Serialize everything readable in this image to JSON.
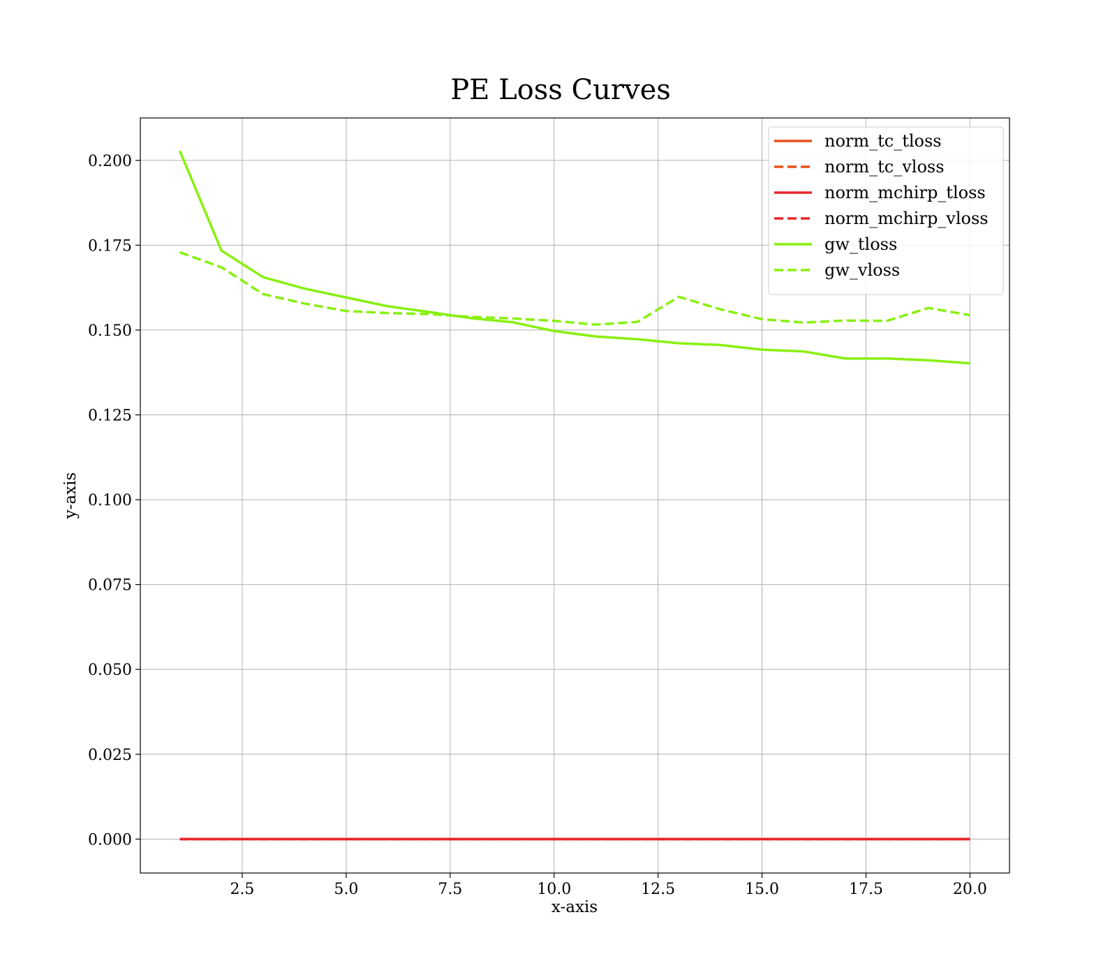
{
  "chart_data": {
    "type": "line",
    "title": "PE Loss Curves",
    "xlabel": "x-axis",
    "ylabel": "y-axis",
    "xlim": [
      0.05,
      20.95
    ],
    "ylim": [
      -0.01,
      0.2125
    ],
    "xticks": [
      2.5,
      5.0,
      7.5,
      10.0,
      12.5,
      15.0,
      17.5,
      20.0
    ],
    "xtick_labels": [
      "2.5",
      "5.0",
      "7.5",
      "10.0",
      "12.5",
      "15.0",
      "17.5",
      "20.0"
    ],
    "yticks": [
      0.0,
      0.025,
      0.05,
      0.075,
      0.1,
      0.125,
      0.15,
      0.175,
      0.2
    ],
    "ytick_labels": [
      "0.000",
      "0.025",
      "0.050",
      "0.075",
      "0.100",
      "0.125",
      "0.150",
      "0.175",
      "0.200"
    ],
    "grid": true,
    "legend_position": "top-right",
    "x": [
      1,
      2,
      3,
      4,
      5,
      6,
      7,
      8,
      9,
      10,
      11,
      12,
      13,
      14,
      15,
      16,
      17,
      18,
      19,
      20
    ],
    "series": [
      {
        "name": "norm_tc_tloss",
        "color": "#e8501c",
        "style": "solid",
        "values": [
          0.0,
          0.0,
          0.0,
          0.0,
          0.0,
          0.0,
          0.0,
          0.0,
          0.0,
          0.0,
          0.0,
          0.0,
          0.0,
          0.0,
          0.0,
          0.0,
          0.0,
          0.0,
          0.0,
          0.0
        ]
      },
      {
        "name": "norm_tc_vloss",
        "color": "#e8501c",
        "style": "dashed",
        "values": [
          0.0,
          0.0,
          0.0,
          0.0,
          0.0,
          0.0,
          0.0,
          0.0,
          0.0,
          0.0,
          0.0,
          0.0,
          0.0,
          0.0,
          0.0,
          0.0,
          0.0,
          0.0,
          0.0,
          0.0
        ]
      },
      {
        "name": "norm_mchirp_tloss",
        "color": "#e8262a",
        "style": "solid",
        "values": [
          0.0,
          0.0,
          0.0,
          0.0,
          0.0,
          0.0,
          0.0,
          0.0,
          0.0,
          0.0,
          0.0,
          0.0,
          0.0,
          0.0,
          0.0,
          0.0,
          0.0,
          0.0,
          0.0,
          0.0
        ]
      },
      {
        "name": "norm_mchirp_vloss",
        "color": "#e8262a",
        "style": "dashed",
        "values": [
          0.0,
          0.0,
          0.0,
          0.0,
          0.0,
          0.0,
          0.0,
          0.0,
          0.0,
          0.0,
          0.0,
          0.0,
          0.0,
          0.0,
          0.0,
          0.0,
          0.0,
          0.0,
          0.0,
          0.0
        ]
      },
      {
        "name": "gw_tloss",
        "color": "#88f00f",
        "style": "solid",
        "values": [
          0.2028,
          0.1734,
          0.1656,
          0.1622,
          0.1596,
          0.157,
          0.1553,
          0.1535,
          0.1523,
          0.1497,
          0.1481,
          0.1473,
          0.1461,
          0.1456,
          0.1442,
          0.1437,
          0.1416,
          0.1416,
          0.1411,
          0.1402
        ]
      },
      {
        "name": "gw_vloss",
        "color": "#88f00f",
        "style": "dashed",
        "values": [
          0.1729,
          0.1685,
          0.1606,
          0.1578,
          0.1556,
          0.155,
          0.1547,
          0.1539,
          0.1534,
          0.1527,
          0.1516,
          0.1524,
          0.1598,
          0.1561,
          0.1532,
          0.1522,
          0.1528,
          0.1527,
          0.1565,
          0.1544
        ]
      }
    ]
  }
}
